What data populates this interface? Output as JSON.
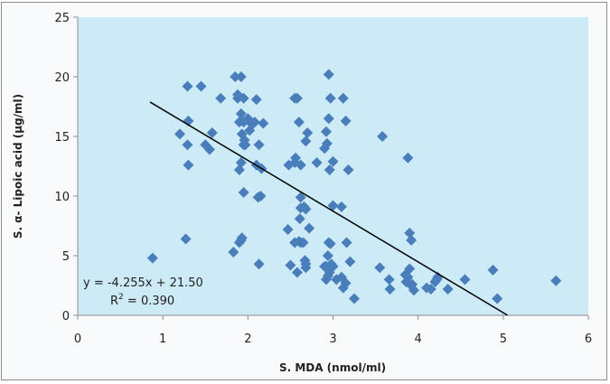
{
  "chart_data": {
    "type": "scatter",
    "title": "",
    "xlabel": "S. MDA (nmol/ml)",
    "ylabel": "S. α- Lipoic acid (µg/ml)",
    "xlim": [
      0,
      6
    ],
    "ylim": [
      0,
      25
    ],
    "xticks": [
      "0",
      "1",
      "2",
      "3",
      "4",
      "5",
      "6"
    ],
    "yticks": [
      "0",
      "5",
      "10",
      "15",
      "20",
      "25"
    ],
    "grid": false,
    "legend": "none",
    "colors": {
      "marker": "#4a7ebb",
      "plot_bg": "#cdebf7",
      "trendline": "#000000"
    },
    "trendline": {
      "slope": -4.255,
      "intercept": 21.5,
      "x_range": [
        0.85,
        5.05
      ]
    },
    "annotations": {
      "equation": "y = -4.255x + 21.50",
      "r2_prefix": "R",
      "r2_sup": "2",
      "r2_suffix": " = 0.390"
    },
    "series": [
      {
        "name": "S. α- Lipoic acid",
        "x": [
          0.88,
          1.27,
          1.29,
          1.3,
          1.29,
          1.2,
          1.45,
          1.5,
          1.58,
          1.55,
          1.3,
          1.68,
          1.85,
          1.92,
          1.88,
          1.95,
          1.88,
          1.9,
          1.92,
          1.95,
          2.0,
          2.02,
          2.05,
          1.97,
          1.93,
          1.95,
          1.9,
          2.1,
          2.08,
          2.18,
          2.1,
          2.13,
          2.16,
          2.12,
          1.92,
          1.96,
          1.95,
          1.92,
          1.9,
          1.93,
          1.83,
          2.15,
          2.13,
          2.55,
          2.58,
          2.6,
          2.56,
          2.55,
          2.62,
          2.7,
          2.68,
          2.48,
          2.62,
          2.66,
          2.62,
          2.68,
          2.61,
          2.72,
          2.65,
          2.62,
          2.47,
          2.55,
          2.6,
          2.67,
          2.68,
          2.5,
          2.58,
          2.68,
          2.81,
          2.95,
          2.97,
          2.95,
          2.93,
          2.9,
          2.92,
          3.0,
          2.96,
          3.12,
          3.15,
          3.18,
          3.1,
          3.0,
          2.95,
          2.97,
          2.92,
          2.96,
          2.94,
          2.98,
          2.92,
          2.94,
          2.96,
          2.9,
          3.0,
          3.04,
          3.16,
          3.2,
          3.1,
          3.12,
          3.25,
          3.15,
          3.58,
          3.55,
          3.66,
          3.67,
          3.85,
          3.88,
          3.9,
          3.92,
          3.86,
          3.9,
          3.93,
          3.95,
          3.88,
          3.92,
          4.1,
          4.15,
          4.22,
          4.23,
          4.2,
          4.35,
          4.55,
          4.88,
          4.93,
          5.62
        ],
        "y": [
          4.8,
          6.4,
          19.2,
          16.3,
          14.3,
          15.2,
          19.2,
          14.3,
          15.3,
          13.9,
          12.6,
          18.2,
          20.0,
          20.0,
          18.5,
          18.2,
          18.2,
          16.2,
          16.9,
          16.2,
          16.5,
          15.5,
          16.0,
          14.3,
          15.2,
          14.3,
          12.2,
          18.1,
          16.2,
          16.1,
          12.6,
          14.3,
          12.3,
          9.9,
          12.8,
          14.7,
          10.3,
          6.3,
          6.1,
          6.5,
          5.3,
          10.0,
          4.3,
          18.2,
          18.2,
          16.2,
          13.2,
          12.8,
          12.6,
          15.3,
          14.6,
          12.6,
          9.9,
          9.1,
          9.0,
          8.9,
          8.1,
          7.3,
          6.1,
          6.1,
          7.2,
          6.1,
          6.2,
          4.6,
          4.0,
          4.2,
          3.6,
          4.3,
          12.8,
          20.2,
          18.2,
          16.5,
          14.4,
          14.0,
          15.4,
          12.9,
          12.2,
          18.2,
          16.3,
          12.2,
          9.1,
          9.2,
          6.1,
          6.0,
          4.1,
          3.9,
          5.0,
          4.3,
          3.0,
          3.3,
          3.6,
          4.1,
          4.1,
          3.0,
          6.1,
          4.5,
          3.2,
          2.3,
          1.4,
          2.7,
          15.0,
          4.0,
          3.0,
          2.2,
          3.4,
          13.2,
          6.9,
          6.3,
          2.8,
          3.9,
          2.6,
          2.1,
          3.2,
          2.5,
          2.3,
          2.2,
          3.0,
          3.2,
          2.8,
          2.2,
          3.0,
          3.8,
          1.4,
          2.9
        ]
      }
    ]
  }
}
